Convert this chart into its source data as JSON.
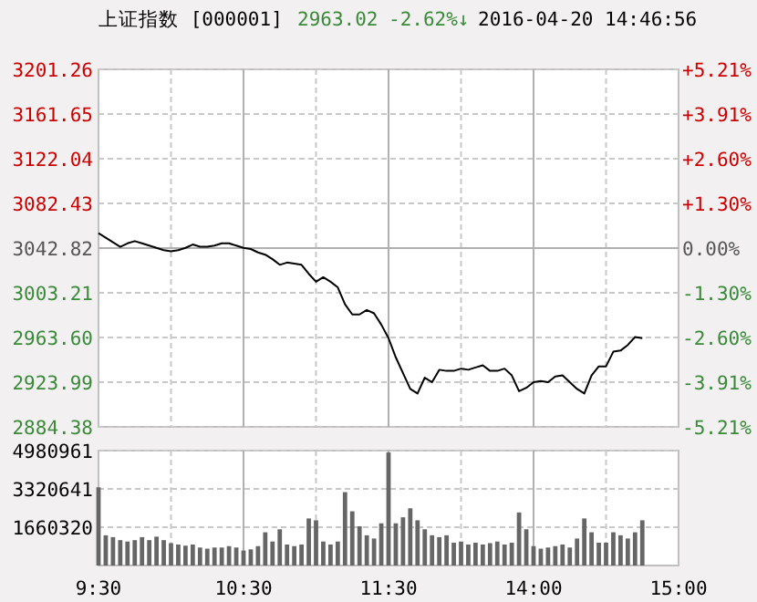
{
  "chart_data": [
    {
      "type": "line",
      "title": "上证指数 [000001]",
      "annotations": [
        "2963.02",
        "-2.62%↓",
        "2016-04-20 14:46:56"
      ],
      "categories": [
        null,
        null,
        null,
        null,
        null,
        null,
        null,
        null,
        null,
        null,
        null,
        null,
        null,
        null,
        null,
        null,
        null,
        null,
        null,
        null,
        null,
        null,
        null,
        null,
        null,
        null,
        null,
        null,
        null,
        null,
        null,
        null,
        null,
        null,
        null,
        null,
        null,
        null,
        null,
        null,
        null,
        null,
        null,
        null,
        null,
        null,
        null,
        null,
        null,
        null,
        null,
        null,
        null,
        null,
        null,
        null,
        null,
        null,
        null,
        null,
        null,
        null,
        null,
        null,
        null,
        null,
        null,
        null,
        null,
        null,
        null,
        null,
        null,
        null,
        null,
        null,
        null,
        null,
        null,
        null,
        null
      ],
      "ylim": [
        2884.38,
        3201.26
      ],
      "yticks": [
        {
          "value": 2884.38,
          "label": "2884.38"
        },
        {
          "value": 2923.99,
          "label": "2923.99"
        },
        {
          "value": 2963.6,
          "label": "2963.60"
        },
        {
          "value": 3003.21,
          "label": "3003.21"
        },
        {
          "value": 3042.82,
          "label": "3042.82"
        },
        {
          "value": 3082.43,
          "label": "3082.43"
        },
        {
          "value": 3122.04,
          "label": "3122.04"
        },
        {
          "value": 3161.65,
          "label": "3161.65"
        },
        {
          "value": 3201.26,
          "label": "3201.26"
        }
      ],
      "y2lim": [
        -5.21,
        5.21
      ],
      "y2ticks": [
        {
          "value": -5.21,
          "label": "-5.21%"
        },
        {
          "value": -3.91,
          "label": "-3.91%"
        },
        {
          "value": -2.6,
          "label": "-2.60%"
        },
        {
          "value": -1.3,
          "label": "-1.30%"
        },
        {
          "value": 0,
          "label": "0.00%"
        },
        {
          "value": 1.3,
          "label": "+1.30%"
        },
        {
          "value": 2.6,
          "label": "+2.60%"
        },
        {
          "value": 3.91,
          "label": "+3.91%"
        },
        {
          "value": 5.21,
          "label": "+5.21%"
        }
      ],
      "tick_labels": "y",
      "grid": true,
      "series": [
        {
          "color": "#000000",
          "values": [
            3056,
            3052,
            3048,
            3044,
            3047,
            3049,
            3047,
            3045,
            3043,
            3041,
            3040,
            3041,
            3043,
            3046,
            3044,
            3044,
            3045,
            3047,
            3047,
            3045,
            3043,
            3042,
            3039,
            3037,
            3033,
            3028,
            3030,
            3029,
            3028,
            3020,
            3013,
            3017,
            3013,
            3008,
            2993,
            2984,
            2984,
            2988,
            2985,
            2975,
            2963,
            2946,
            2932,
            2918,
            2914,
            2928,
            2924,
            2935,
            2934,
            2934,
            2936,
            2935,
            2937,
            2939,
            2934,
            2934,
            2936,
            2930,
            2916,
            2919,
            2924,
            2925,
            2924,
            2929,
            2930,
            2924,
            2918,
            2914,
            2930,
            2938,
            2938,
            2951,
            2952,
            2957,
            2964,
            2963,
            null,
            null,
            null,
            null,
            null
          ]
        }
      ]
    },
    {
      "type": "bar",
      "categories": [
        "9:30",
        null,
        null,
        null,
        null,
        null,
        null,
        null,
        null,
        null,
        null,
        null,
        null,
        null,
        null,
        null,
        null,
        null,
        null,
        null,
        "10:30",
        null,
        null,
        null,
        null,
        null,
        null,
        null,
        null,
        null,
        null,
        null,
        null,
        null,
        null,
        null,
        null,
        null,
        null,
        null,
        "11:30",
        null,
        null,
        null,
        null,
        null,
        null,
        null,
        null,
        null,
        null,
        null,
        null,
        null,
        null,
        null,
        null,
        null,
        null,
        null,
        "14:00",
        null,
        null,
        null,
        null,
        null,
        null,
        null,
        null,
        null,
        null,
        null,
        null,
        null,
        null,
        null,
        null,
        null,
        null,
        null,
        "15:00"
      ],
      "ylim": [
        0,
        4980961
      ],
      "yticks": [
        1660320,
        3320641,
        4980961
      ],
      "grid": true,
      "series": [
        {
          "color": "#666666",
          "values": [
            3390000,
            1310000,
            1230000,
            1100000,
            1040000,
            1100000,
            1230000,
            1100000,
            1250000,
            1100000,
            970000,
            910000,
            860000,
            910000,
            780000,
            730000,
            780000,
            780000,
            840000,
            780000,
            650000,
            700000,
            840000,
            1440000,
            1040000,
            1570000,
            910000,
            840000,
            910000,
            2040000,
            1960000,
            1040000,
            910000,
            1040000,
            3180000,
            2350000,
            1700000,
            1310000,
            1170000,
            1830000,
            4900000,
            1830000,
            2090000,
            2480000,
            1960000,
            1570000,
            1310000,
            1230000,
            1310000,
            990000,
            1040000,
            910000,
            990000,
            910000,
            970000,
            1040000,
            910000,
            990000,
            2300000,
            1570000,
            840000,
            730000,
            780000,
            840000,
            910000,
            780000,
            1170000,
            2040000,
            1440000,
            990000,
            990000,
            1440000,
            1310000,
            1170000,
            1440000,
            1960000,
            null,
            null,
            null,
            null,
            null
          ]
        }
      ]
    }
  ]
}
